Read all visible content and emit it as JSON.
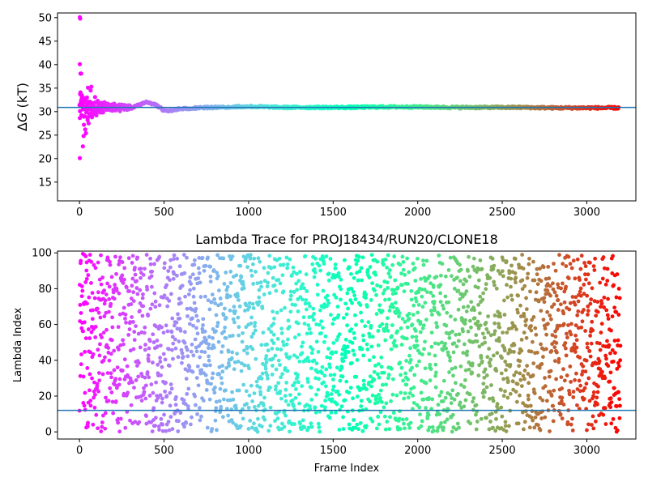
{
  "chart_data": [
    {
      "type": "scatter",
      "title": "",
      "xlabel": "",
      "ylabel_prefix": "Δ",
      "ylabel_italic": "G",
      "ylabel_suffix": " (kT)",
      "xlim": [
        -130,
        3290
      ],
      "ylim": [
        11,
        51
      ],
      "xticks": [
        0,
        500,
        1000,
        1500,
        2000,
        2500,
        3000
      ],
      "yticks": [
        15,
        20,
        25,
        30,
        35,
        40,
        45,
        50
      ],
      "hline": 30.9,
      "hline_color": "#1f77b4",
      "colormap": "rainbow",
      "frames": 3200,
      "grid": false,
      "points_early": [
        [
          2,
          50.1
        ],
        [
          4,
          49.8
        ],
        [
          2,
          40.1
        ],
        [
          6,
          38.1
        ],
        [
          10,
          38.1
        ],
        [
          3,
          30.1
        ],
        [
          14,
          33.0
        ],
        [
          2,
          20.1
        ],
        [
          20,
          22.6
        ],
        [
          24,
          24.8
        ],
        [
          26,
          27.2
        ],
        [
          30,
          29.0
        ],
        [
          34,
          26.2
        ],
        [
          38,
          25.4
        ],
        [
          40,
          31.2
        ],
        [
          44,
          33.0
        ],
        [
          48,
          28.2
        ],
        [
          50,
          35.1
        ],
        [
          54,
          27.5
        ],
        [
          58,
          29.5
        ],
        [
          62,
          32.1
        ],
        [
          66,
          34.5
        ],
        [
          70,
          35.3
        ],
        [
          74,
          28.8
        ],
        [
          80,
          31.8
        ],
        [
          86,
          30.0
        ],
        [
          92,
          33.1
        ],
        [
          100,
          29.2
        ],
        [
          108,
          32.3
        ],
        [
          116,
          30.2
        ],
        [
          126,
          31.6
        ],
        [
          136,
          29.8
        ],
        [
          148,
          32.0
        ],
        [
          160,
          30.4
        ],
        [
          175,
          31.5
        ],
        [
          190,
          30.6
        ],
        [
          205,
          31.7
        ],
        [
          220,
          30.5
        ],
        [
          240,
          30.1
        ],
        [
          260,
          31.2
        ]
      ],
      "series_late": {
        "x": [
          300,
          350,
          400,
          450,
          500,
          550,
          600,
          700,
          800,
          900,
          1000,
          1100,
          1200,
          1400,
          1600,
          1800,
          2000,
          2200,
          2400,
          2600,
          2800,
          3000,
          3200
        ],
        "y": [
          30.7,
          31.4,
          32.0,
          31.5,
          30.2,
          30.3,
          30.6,
          30.8,
          30.9,
          31.0,
          31.1,
          31.0,
          30.9,
          30.9,
          30.9,
          31.0,
          31.0,
          30.9,
          30.9,
          30.9,
          30.8,
          30.8,
          30.8
        ]
      }
    },
    {
      "type": "scatter",
      "title": "Lambda Trace for PROJ18434/RUN20/CLONE18",
      "xlabel": "Frame Index",
      "ylabel": "Lambda Index",
      "xlim": [
        -130,
        3290
      ],
      "ylim": [
        -4,
        101
      ],
      "xticks": [
        0,
        500,
        1000,
        1500,
        2000,
        2500,
        3000
      ],
      "yticks": [
        0,
        20,
        40,
        60,
        80,
        100
      ],
      "hline": 12,
      "hline_color": "#1f77b4",
      "colormap": "rainbow",
      "frames": 3200,
      "grid": false
    }
  ]
}
